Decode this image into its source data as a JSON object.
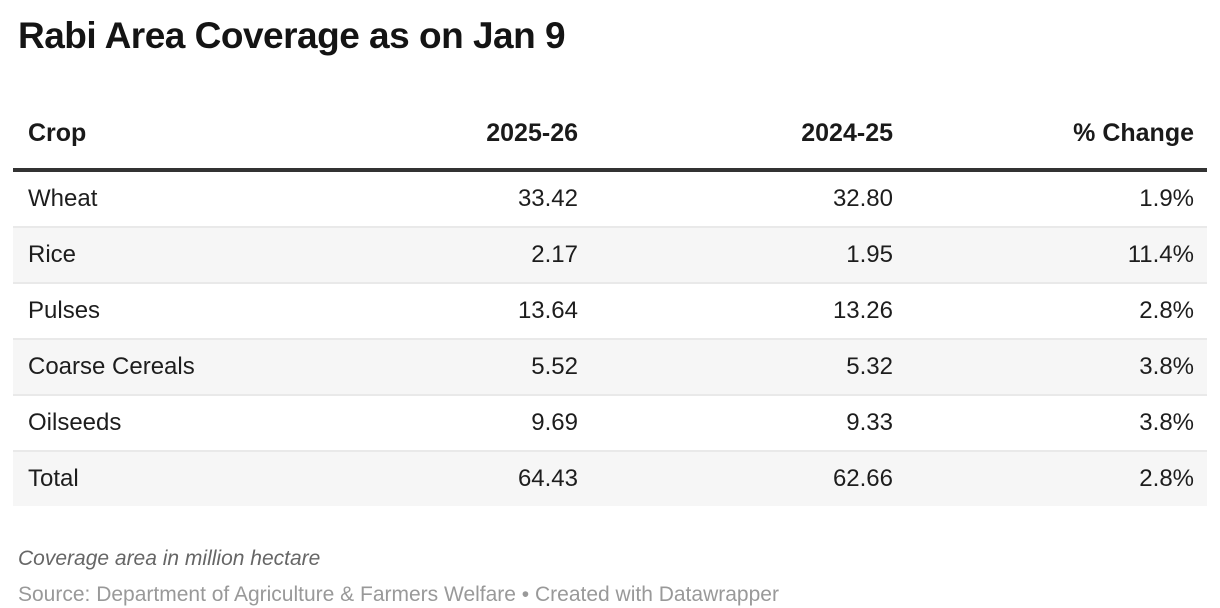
{
  "title": "Rabi Area Coverage as on Jan 9",
  "table": {
    "columns": [
      "Crop",
      "2025-26",
      "2024-25",
      "% Change"
    ],
    "rows": [
      {
        "crop": "Wheat",
        "y2025_26": "33.42",
        "y2024_25": "32.80",
        "pct_change": "1.9%"
      },
      {
        "crop": "Rice",
        "y2025_26": "2.17",
        "y2024_25": "1.95",
        "pct_change": "11.4%"
      },
      {
        "crop": "Pulses",
        "y2025_26": "13.64",
        "y2024_25": "13.26",
        "pct_change": "2.8%"
      },
      {
        "crop": "Coarse Cereals",
        "y2025_26": "5.52",
        "y2024_25": "5.32",
        "pct_change": "3.8%"
      },
      {
        "crop": "Oilseeds",
        "y2025_26": "9.69",
        "y2024_25": "9.33",
        "pct_change": "3.8%"
      },
      {
        "crop": "Total",
        "y2025_26": "64.43",
        "y2024_25": "62.66",
        "pct_change": "2.8%"
      }
    ]
  },
  "footer": {
    "notes": "Coverage area in million hectare",
    "source": "Source: Department of Agriculture & Farmers Welfare • Created with Datawrapper"
  },
  "colors": {
    "title_text": "#141414",
    "body_text": "#1d1d1d",
    "header_border": "#333333",
    "row_separator": "#e9e9e9",
    "row_stripe": "#f6f6f6",
    "notes_text": "#666666",
    "source_text": "#999999",
    "background": "#ffffff"
  },
  "chart_data": {
    "type": "table",
    "title": "Rabi Area Coverage as on Jan 9",
    "columns": [
      "Crop",
      "2025-26",
      "2024-25",
      "% Change"
    ],
    "rows": [
      [
        "Wheat",
        33.42,
        32.8,
        "1.9%"
      ],
      [
        "Rice",
        2.17,
        1.95,
        "11.4%"
      ],
      [
        "Pulses",
        13.64,
        13.26,
        "2.8%"
      ],
      [
        "Coarse Cereals",
        5.52,
        5.32,
        "3.8%"
      ],
      [
        "Oilseeds",
        9.69,
        9.33,
        "3.8%"
      ],
      [
        "Total",
        64.43,
        62.66,
        "2.8%"
      ]
    ],
    "notes": "Coverage area in million hectare",
    "source": "Source: Department of Agriculture & Farmers Welfare • Created with Datawrapper",
    "layout_hints": {
      "numeric_columns_right_aligned": true,
      "zebra_striping": "even rows shaded",
      "units": "million hectare"
    }
  }
}
